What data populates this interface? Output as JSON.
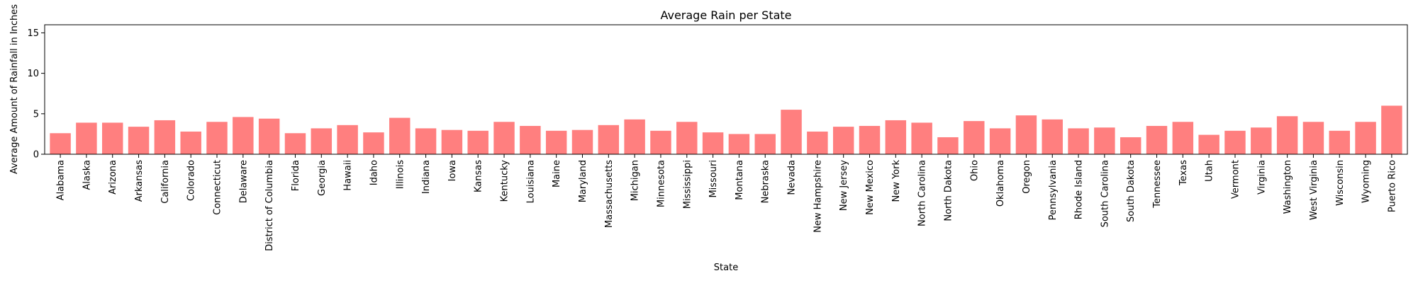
{
  "chart_data": {
    "type": "bar",
    "title": "Average Rain per State",
    "xlabel": "State",
    "ylabel": "Average Amount of Rainfall in Inches",
    "ylim": [
      0,
      16
    ],
    "yticks": [
      0,
      5,
      10,
      15
    ],
    "grid": false,
    "colors": {
      "bar": "#ff7f7f",
      "axis": "#000000",
      "background": "#ffffff"
    },
    "categories": [
      "Alabama",
      "Alaska",
      "Arizona",
      "Arkansas",
      "California",
      "Colorado",
      "Connecticut",
      "Delaware",
      "District of Columbia",
      "Florida",
      "Georgia",
      "Hawaii",
      "Idaho",
      "Illinois",
      "Indiana",
      "Iowa",
      "Kansas",
      "Kentucky",
      "Louisiana",
      "Maine",
      "Maryland",
      "Massachusetts",
      "Michigan",
      "Minnesota",
      "Mississippi",
      "Missouri",
      "Montana",
      "Nebraska",
      "Nevada",
      "New Hampshire",
      "New Jersey",
      "New Mexico",
      "New York",
      "North Carolina",
      "North Dakota",
      "Ohio",
      "Oklahoma",
      "Oregon",
      "Pennsylvania",
      "Rhode Island",
      "South Carolina",
      "South Dakota",
      "Tennessee",
      "Texas",
      "Utah",
      "Vermont",
      "Virginia",
      "Washington",
      "West Virginia",
      "Wisconsin",
      "Wyoming",
      "Puerto Rico"
    ],
    "values": [
      2.6,
      3.9,
      3.9,
      3.4,
      4.2,
      2.8,
      4.0,
      4.6,
      4.4,
      2.6,
      3.2,
      3.6,
      2.7,
      4.5,
      3.2,
      3.0,
      2.9,
      4.0,
      3.5,
      2.9,
      3.0,
      3.6,
      4.3,
      2.9,
      4.0,
      2.7,
      2.5,
      2.5,
      5.5,
      2.8,
      3.4,
      3.5,
      4.2,
      3.9,
      2.1,
      4.1,
      3.2,
      4.8,
      4.3,
      3.2,
      3.3,
      2.1,
      3.5,
      4.0,
      2.4,
      2.9,
      3.3,
      4.7,
      4.0,
      2.9,
      4.0,
      6.0
    ]
  }
}
